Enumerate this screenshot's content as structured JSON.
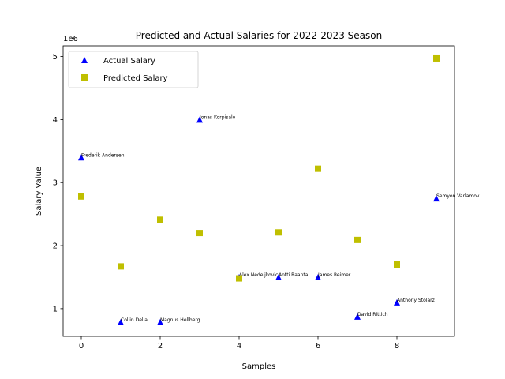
{
  "chart_data": {
    "type": "scatter",
    "title": "Predicted and Actual Salaries for 2022-2023 Season",
    "xlabel": "Samples",
    "ylabel": "Salary Value",
    "y_offset_label": "1e6",
    "xlim": [
      -0.46,
      9.46
    ],
    "ylim": [
      560000,
      5170000
    ],
    "xticks": [
      0,
      2,
      4,
      6,
      8
    ],
    "yticks": [
      1000000,
      2000000,
      3000000,
      4000000,
      5000000
    ],
    "ytick_labels": [
      "1",
      "2",
      "3",
      "4",
      "5"
    ],
    "grid": false,
    "legend_position": "top-left",
    "series": [
      {
        "name": "Actual Salary",
        "marker": "triangle",
        "color": "#0000ff",
        "x": [
          0,
          1,
          2,
          3,
          4,
          5,
          6,
          7,
          8,
          9
        ],
        "y": [
          3400000,
          787500,
          787500,
          4000000,
          1500000,
          1500000,
          1500000,
          875000,
          1100000,
          2750000
        ],
        "labels": [
          "Frederik Andersen",
          "Collin Delia",
          "Magnus Hellberg",
          "Jonas Korpisalo",
          "Alex Nedeljkovic",
          "Antti Raanta",
          "James Reimer",
          "David Rittich",
          "Anthony Stolarz",
          "Semyon Varlamov"
        ]
      },
      {
        "name": "Predicted Salary",
        "marker": "square",
        "color": "#bfbf00",
        "x": [
          0,
          1,
          2,
          3,
          4,
          5,
          6,
          7,
          8,
          9
        ],
        "y": [
          2780000,
          1670000,
          2410000,
          2200000,
          1480000,
          2210000,
          3220000,
          2090000,
          1700000,
          4970000
        ]
      }
    ]
  }
}
